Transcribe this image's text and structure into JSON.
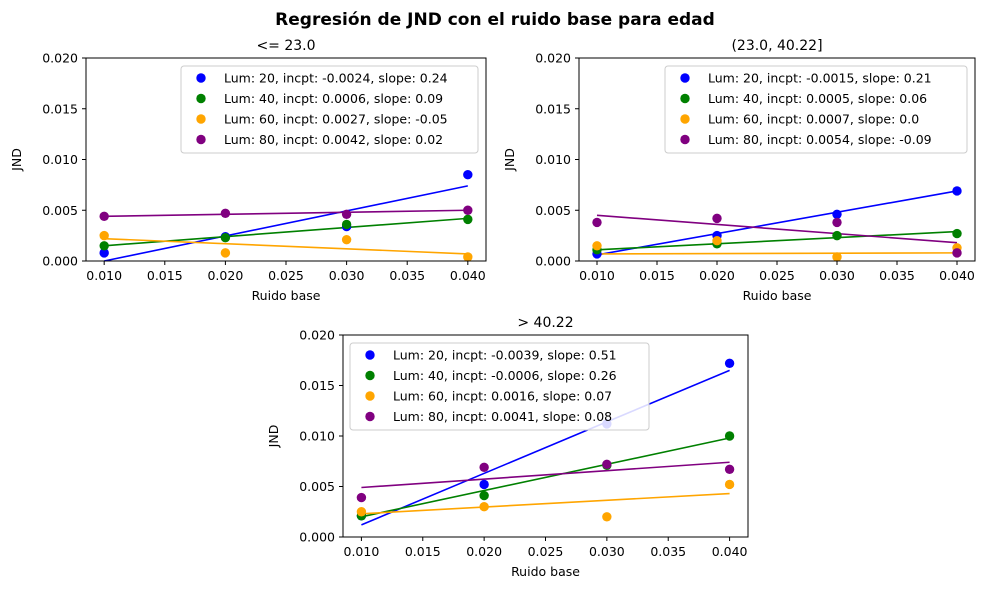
{
  "figure": {
    "suptitle": "Regresión de JND con el ruido base para edad"
  },
  "colors": {
    "Lum: 20": "#0000ff",
    "Lum: 40": "#008000",
    "Lum: 60": "#ffa500",
    "Lum: 80": "#800080"
  },
  "chart_data": [
    {
      "type": "scatter",
      "title": "<= 23.0",
      "xlabel": "Ruido base",
      "ylabel": "JND",
      "xlim": [
        0.0085,
        0.0415
      ],
      "ylim": [
        0,
        0.02
      ],
      "xticks": [
        "0.010",
        "0.015",
        "0.020",
        "0.025",
        "0.030",
        "0.035",
        "0.040"
      ],
      "yticks": [
        "0.000",
        "0.005",
        "0.010",
        "0.015",
        "0.020"
      ],
      "legend_position": "top-right",
      "x": [
        0.01,
        0.02,
        0.03,
        0.04
      ],
      "series": [
        {
          "name": "Lum: 20, incpt: -0.0024, slope: 0.24",
          "color": "#0000ff",
          "values": [
            0.0008,
            0.0024,
            0.0034,
            0.0085
          ],
          "fit_line": [
            0.0,
            0.0074
          ]
        },
        {
          "name": "Lum: 40, incpt: 0.0006, slope: 0.09",
          "color": "#008000",
          "values": [
            0.0015,
            0.0023,
            0.0036,
            0.0041
          ],
          "fit_line": [
            0.0015,
            0.0042
          ]
        },
        {
          "name": "Lum: 60, incpt: 0.0027, slope: -0.05",
          "color": "#ffa500",
          "values": [
            0.0025,
            0.0008,
            0.0021,
            0.0004
          ],
          "fit_line": [
            0.0022,
            0.0007
          ]
        },
        {
          "name": "Lum: 80, incpt: 0.0042, slope: 0.02",
          "color": "#800080",
          "values": [
            0.0044,
            0.0047,
            0.0046,
            0.005
          ],
          "fit_line": [
            0.0044,
            0.005
          ]
        }
      ]
    },
    {
      "type": "scatter",
      "title": "(23.0, 40.22]",
      "xlabel": "Ruido base",
      "ylabel": "JND",
      "xlim": [
        0.0085,
        0.0415
      ],
      "ylim": [
        0,
        0.02
      ],
      "xticks": [
        "0.010",
        "0.015",
        "0.020",
        "0.025",
        "0.030",
        "0.035",
        "0.040"
      ],
      "yticks": [
        "0.000",
        "0.005",
        "0.010",
        "0.015",
        "0.020"
      ],
      "legend_position": "top-right",
      "x": [
        0.01,
        0.02,
        0.03,
        0.04
      ],
      "series": [
        {
          "name": "Lum: 20, incpt: -0.0015, slope: 0.21",
          "color": "#0000ff",
          "values": [
            0.0007,
            0.0025,
            0.0046,
            0.0069
          ],
          "fit_line": [
            0.0006,
            0.0069
          ]
        },
        {
          "name": "Lum: 40, incpt: 0.0005, slope: 0.06",
          "color": "#008000",
          "values": [
            0.0011,
            0.0017,
            0.0025,
            0.0027
          ],
          "fit_line": [
            0.0011,
            0.0029
          ]
        },
        {
          "name": "Lum: 60, incpt: 0.0007, slope: 0.0",
          "color": "#ffa500",
          "values": [
            0.0015,
            0.002,
            0.0004,
            0.0013
          ],
          "fit_line": [
            0.0007,
            0.0008
          ]
        },
        {
          "name": "Lum: 80, incpt: 0.0054, slope: -0.09",
          "color": "#800080",
          "values": [
            0.0038,
            0.0042,
            0.0038,
            0.0008
          ],
          "fit_line": [
            0.0045,
            0.0018
          ]
        }
      ]
    },
    {
      "type": "scatter",
      "title": "> 40.22",
      "xlabel": "Ruido base",
      "ylabel": "JND",
      "xlim": [
        0.0085,
        0.0415
      ],
      "ylim": [
        0,
        0.02
      ],
      "xticks": [
        "0.010",
        "0.015",
        "0.020",
        "0.025",
        "0.030",
        "0.035",
        "0.040"
      ],
      "yticks": [
        "0.000",
        "0.005",
        "0.010",
        "0.015",
        "0.020"
      ],
      "legend_position": "top-left",
      "x": [
        0.01,
        0.02,
        0.03,
        0.04
      ],
      "series": [
        {
          "name": "Lum: 20, incpt: -0.0039, slope: 0.51",
          "color": "#0000ff",
          "values": [
            0.0021,
            0.0052,
            0.0112,
            0.0172
          ],
          "fit_line": [
            0.0012,
            0.0165
          ]
        },
        {
          "name": "Lum: 40, incpt: -0.0006, slope: 0.26",
          "color": "#008000",
          "values": [
            0.0021,
            0.0041,
            0.0071,
            0.01
          ],
          "fit_line": [
            0.002,
            0.0098
          ]
        },
        {
          "name": "Lum: 60, incpt: 0.0016, slope: 0.07",
          "color": "#ffa500",
          "values": [
            0.0025,
            0.003,
            0.002,
            0.0052
          ],
          "fit_line": [
            0.0023,
            0.0043
          ]
        },
        {
          "name": "Lum: 80, incpt: 0.0041, slope: 0.08",
          "color": "#800080",
          "values": [
            0.0039,
            0.0069,
            0.0072,
            0.0067
          ],
          "fit_line": [
            0.0049,
            0.0074
          ]
        }
      ]
    }
  ]
}
